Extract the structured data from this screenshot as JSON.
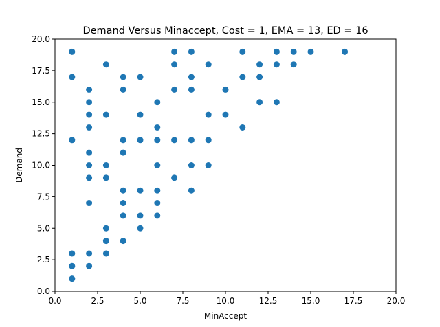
{
  "chart_data": {
    "type": "scatter",
    "title": "Demand Versus Minaccept, Cost = 1, EMA = 13, ED = 16",
    "xlabel": "MinAccept",
    "ylabel": "Demand",
    "xlim": [
      0,
      20
    ],
    "ylim": [
      0,
      20
    ],
    "xticks": [
      "0.0",
      "2.5",
      "5.0",
      "7.5",
      "10.0",
      "12.5",
      "15.0",
      "17.5",
      "20.0"
    ],
    "yticks": [
      "0.0",
      "2.5",
      "5.0",
      "7.5",
      "10.0",
      "12.5",
      "15.0",
      "17.5",
      "20.0"
    ],
    "grid": false,
    "marker_color": "#1f77b4",
    "series": [
      {
        "points": [
          [
            1,
            19
          ],
          [
            1,
            17
          ],
          [
            1,
            12
          ],
          [
            1,
            3
          ],
          [
            1,
            2
          ],
          [
            1,
            1
          ],
          [
            2,
            16
          ],
          [
            2,
            15
          ],
          [
            2,
            14
          ],
          [
            2,
            13
          ],
          [
            2,
            11
          ],
          [
            2,
            10
          ],
          [
            2,
            9
          ],
          [
            2,
            7
          ],
          [
            2,
            3
          ],
          [
            2,
            2
          ],
          [
            3,
            18
          ],
          [
            3,
            14
          ],
          [
            3,
            10
          ],
          [
            3,
            9
          ],
          [
            3,
            5
          ],
          [
            3,
            4
          ],
          [
            3,
            3
          ],
          [
            4,
            17
          ],
          [
            4,
            16
          ],
          [
            4,
            12
          ],
          [
            4,
            11
          ],
          [
            4,
            8
          ],
          [
            4,
            7
          ],
          [
            4,
            6
          ],
          [
            4,
            4
          ],
          [
            5,
            17
          ],
          [
            5,
            14
          ],
          [
            5,
            12
          ],
          [
            5,
            8
          ],
          [
            5,
            6
          ],
          [
            5,
            5
          ],
          [
            6,
            15
          ],
          [
            6,
            13
          ],
          [
            6,
            12
          ],
          [
            6,
            10
          ],
          [
            6,
            8
          ],
          [
            6,
            7
          ],
          [
            6,
            6
          ],
          [
            7,
            19
          ],
          [
            7,
            18
          ],
          [
            7,
            16
          ],
          [
            7,
            12
          ],
          [
            7,
            9
          ],
          [
            8,
            19
          ],
          [
            8,
            17
          ],
          [
            8,
            16
          ],
          [
            8,
            12
          ],
          [
            8,
            10
          ],
          [
            8,
            8
          ],
          [
            9,
            18
          ],
          [
            9,
            14
          ],
          [
            9,
            12
          ],
          [
            9,
            10
          ],
          [
            10,
            16
          ],
          [
            10,
            14
          ],
          [
            11,
            19
          ],
          [
            11,
            17
          ],
          [
            11,
            13
          ],
          [
            12,
            18
          ],
          [
            12,
            17
          ],
          [
            12,
            15
          ],
          [
            13,
            19
          ],
          [
            13,
            18
          ],
          [
            13,
            15
          ],
          [
            14,
            19
          ],
          [
            14,
            18
          ],
          [
            15,
            19
          ],
          [
            17,
            19
          ]
        ]
      }
    ]
  }
}
